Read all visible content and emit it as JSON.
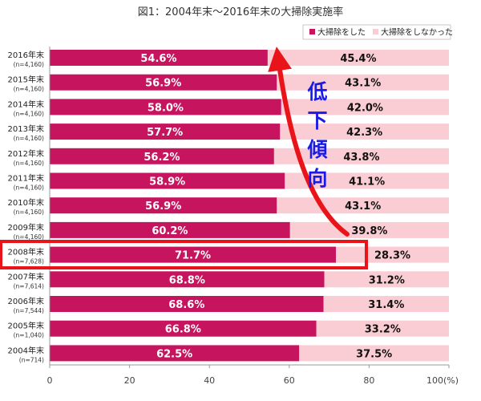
{
  "chart_data": {
    "type": "bar",
    "orientation": "horizontal",
    "stacked": true,
    "title": "図1：2004年末～2016年末の大掃除実施率",
    "categories": [
      "2016年末",
      "2015年末",
      "2014年末",
      "2013年末",
      "2012年末",
      "2011年末",
      "2010年末",
      "2009年末",
      "2008年末",
      "2007年末",
      "2006年末",
      "2005年末",
      "2004年末"
    ],
    "sample_sizes": [
      "(n=4,160)",
      "(n=4,160)",
      "(n=4,160)",
      "(n=4,160)",
      "(n=4,160)",
      "(n=4,160)",
      "(n=4,160)",
      "(n=4,160)",
      "(n=7,628)",
      "(n=7,614)",
      "(n=7,544)",
      "(n=1,040)",
      "(n=714)"
    ],
    "series": [
      {
        "name": "大掃除をした",
        "color": "#c6145e",
        "values": [
          54.6,
          56.9,
          58.0,
          57.7,
          56.2,
          58.9,
          56.9,
          60.2,
          71.7,
          68.8,
          68.6,
          66.8,
          62.5
        ]
      },
      {
        "name": "大掃除をしなかった",
        "color": "#f9cdd3",
        "values": [
          45.4,
          43.1,
          42.0,
          42.3,
          43.8,
          41.1,
          43.1,
          39.8,
          28.3,
          31.2,
          31.4,
          33.2,
          37.5
        ]
      }
    ],
    "value_labels": {
      "did": [
        "54.6%",
        "56.9%",
        "58.0%",
        "57.7%",
        "56.2%",
        "58.9%",
        "56.9%",
        "60.2%",
        "71.7%",
        "68.8%",
        "68.6%",
        "66.8%",
        "62.5%"
      ],
      "did_not": [
        "45.4%",
        "43.1%",
        "42.0%",
        "42.3%",
        "43.8%",
        "41.1%",
        "43.1%",
        "39.8%",
        "28.3%",
        "31.2%",
        "31.4%",
        "33.2%",
        "37.5%"
      ]
    },
    "xlim": [
      0,
      100
    ],
    "x_ticks": [
      "0",
      "20",
      "40",
      "60",
      "80",
      "100(%)"
    ],
    "x_tick_values": [
      0,
      20,
      40,
      60,
      80,
      100
    ],
    "grid": false,
    "legend_position": "top-right",
    "highlight_category": "2008年末",
    "highlight_color": "#e8141a",
    "annotation": {
      "text": "低下傾向",
      "color": "#1a1ae6"
    }
  }
}
